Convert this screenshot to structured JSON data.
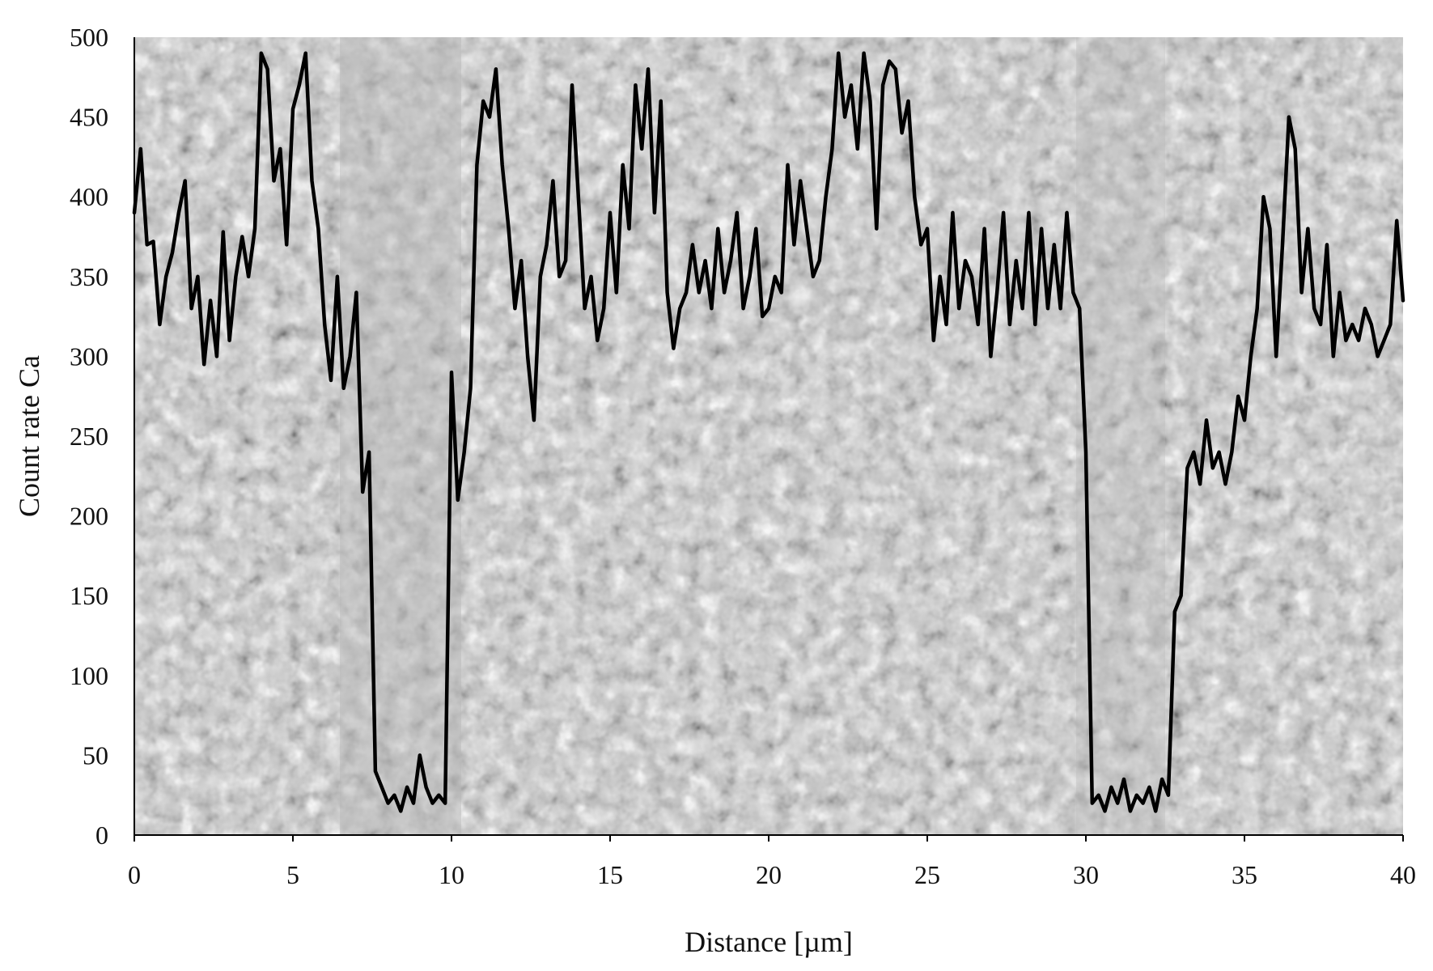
{
  "chart_data": {
    "type": "line",
    "title": "",
    "xlabel": "Distance [µm]",
    "ylabel": "Count rate Ca",
    "xlim": [
      0,
      40
    ],
    "ylim": [
      0,
      500
    ],
    "xticks": [
      0,
      5,
      10,
      15,
      20,
      25,
      30,
      35,
      40
    ],
    "yticks": [
      0,
      50,
      100,
      150,
      200,
      250,
      300,
      350,
      400,
      450,
      500
    ],
    "grid": false,
    "legend": "none",
    "background": "SEM micrograph (grey, granular texture)",
    "colors": {
      "line": "#000000",
      "plot_bg": "#c9c9c9"
    },
    "series": [
      {
        "x": [
          0,
          0.2,
          0.4,
          0.6,
          0.8,
          1.0,
          1.2,
          1.4,
          1.6,
          1.8,
          2.0,
          2.2,
          2.4,
          2.6,
          2.8,
          3.0,
          3.2,
          3.4,
          3.6,
          3.8,
          4.0,
          4.2,
          4.4,
          4.6,
          4.8,
          5.0,
          5.2,
          5.4,
          5.6,
          5.8,
          6.0,
          6.2,
          6.4,
          6.6,
          6.8,
          7.0,
          7.2,
          7.4,
          7.6,
          7.8,
          8.0,
          8.2,
          8.4,
          8.6,
          8.8,
          9.0,
          9.2,
          9.4,
          9.6,
          9.8,
          10.0,
          10.2,
          10.4,
          10.6,
          10.8,
          11.0,
          11.2,
          11.4,
          11.6,
          11.8,
          12.0,
          12.2,
          12.4,
          12.6,
          12.8,
          13.0,
          13.2,
          13.4,
          13.6,
          13.8,
          14.0,
          14.2,
          14.4,
          14.6,
          14.8,
          15.0,
          15.2,
          15.4,
          15.6,
          15.8,
          16.0,
          16.2,
          16.4,
          16.6,
          16.8,
          17.0,
          17.2,
          17.4,
          17.6,
          17.8,
          18.0,
          18.2,
          18.4,
          18.6,
          18.8,
          19.0,
          19.2,
          19.4,
          19.6,
          19.8,
          20.0,
          20.2,
          20.4,
          20.6,
          20.8,
          21.0,
          21.2,
          21.4,
          21.6,
          21.8,
          22.0,
          22.2,
          22.4,
          22.6,
          22.8,
          23.0,
          23.2,
          23.4,
          23.6,
          23.8,
          24.0,
          24.2,
          24.4,
          24.6,
          24.8,
          25.0,
          25.2,
          25.4,
          25.6,
          25.8,
          26.0,
          26.2,
          26.4,
          26.6,
          26.8,
          27.0,
          27.2,
          27.4,
          27.6,
          27.8,
          28.0,
          28.2,
          28.4,
          28.6,
          28.8,
          29.0,
          29.2,
          29.4,
          29.6,
          29.8,
          30.0,
          30.2,
          30.4,
          30.6,
          30.8,
          31.0,
          31.2,
          31.4,
          31.6,
          31.8,
          32.0,
          32.2,
          32.4,
          32.6,
          32.8,
          33.0,
          33.2,
          33.4,
          33.6,
          33.8,
          34.0,
          34.2,
          34.4,
          34.6,
          34.8,
          35.0,
          35.2,
          35.4,
          35.6,
          35.8,
          36.0,
          36.2,
          36.4,
          36.6,
          36.8,
          37.0,
          37.2,
          37.4,
          37.6,
          37.8,
          38.0,
          38.2,
          38.4,
          38.6,
          38.8,
          39.0,
          39.2,
          39.4,
          39.6,
          39.8,
          40.0
        ],
        "values": [
          390,
          430,
          370,
          372,
          320,
          350,
          365,
          390,
          410,
          330,
          350,
          295,
          335,
          300,
          378,
          310,
          350,
          375,
          350,
          380,
          490,
          480,
          410,
          430,
          370,
          455,
          470,
          490,
          410,
          380,
          320,
          285,
          350,
          280,
          300,
          340,
          215,
          240,
          40,
          30,
          20,
          25,
          15,
          30,
          20,
          50,
          30,
          20,
          25,
          20,
          290,
          210,
          240,
          280,
          420,
          460,
          450,
          480,
          420,
          380,
          330,
          360,
          300,
          260,
          350,
          370,
          410,
          350,
          360,
          470,
          400,
          330,
          350,
          310,
          330,
          390,
          340,
          420,
          380,
          470,
          430,
          480,
          390,
          460,
          340,
          305,
          330,
          340,
          370,
          340,
          360,
          330,
          380,
          340,
          360,
          390,
          330,
          350,
          380,
          325,
          330,
          350,
          340,
          420,
          370,
          410,
          380,
          350,
          360,
          400,
          430,
          490,
          450,
          470,
          430,
          490,
          460,
          380,
          470,
          485,
          480,
          440,
          460,
          400,
          370,
          380,
          310,
          350,
          320,
          390,
          330,
          360,
          350,
          320,
          380,
          300,
          340,
          390,
          320,
          360,
          330,
          390,
          320,
          380,
          330,
          370,
          330,
          390,
          340,
          330,
          240,
          20,
          25,
          15,
          30,
          20,
          35,
          15,
          25,
          20,
          30,
          15,
          35,
          25,
          140,
          150,
          230,
          240,
          220,
          260,
          230,
          240,
          220,
          240,
          275,
          260,
          300,
          330,
          400,
          380,
          300,
          370,
          450,
          430,
          340,
          380,
          330,
          320,
          370,
          300,
          340,
          310,
          320,
          310,
          330,
          320,
          300,
          310,
          320,
          385,
          335
        ]
      }
    ]
  }
}
